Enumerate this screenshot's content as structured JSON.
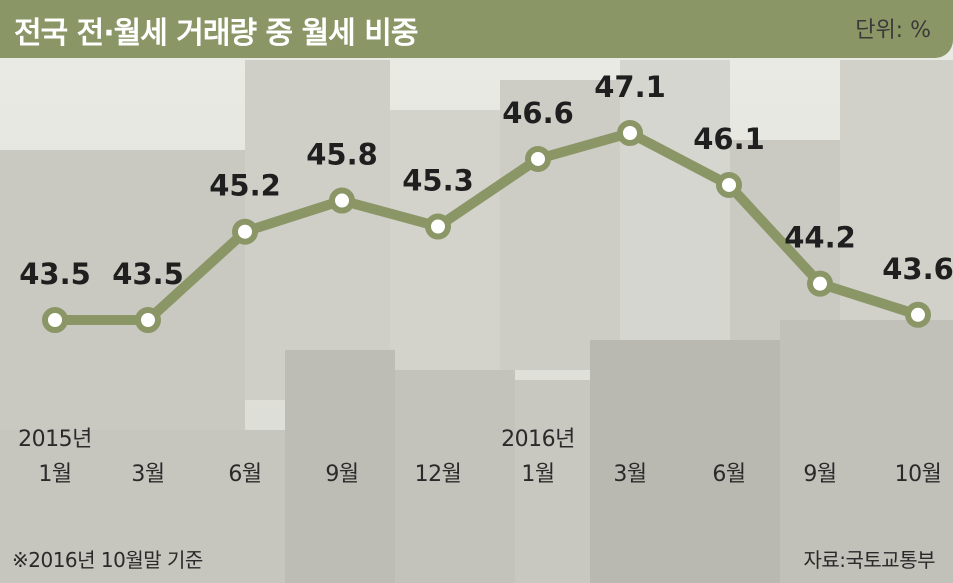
{
  "header": {
    "title": "전국 전·월세 거래량 중 월세 비중",
    "unit": "단위: %"
  },
  "chart_data": {
    "type": "line",
    "title": "전국 전·월세 거래량 중 월세 비중",
    "unit": "단위: %",
    "categories": [
      "1월",
      "3월",
      "6월",
      "9월",
      "12월",
      "1월",
      "3월",
      "6월",
      "9월",
      "10월"
    ],
    "year_labels": [
      {
        "index": 0,
        "label": "2015년"
      },
      {
        "index": 5,
        "label": "2016년"
      }
    ],
    "values": [
      43.5,
      43.5,
      45.2,
      45.8,
      45.3,
      46.6,
      47.1,
      46.1,
      44.2,
      43.6
    ],
    "value_labels": [
      "43.5",
      "43.5",
      "45.2",
      "45.8",
      "45.3",
      "46.6",
      "47.1",
      "46.1",
      "44.2",
      "43.6"
    ],
    "grid": false,
    "legend": "none",
    "line_color": "#8a9666"
  },
  "footer": {
    "note": "※2016년 10월말 기준",
    "source": "자료:국토교통부"
  }
}
